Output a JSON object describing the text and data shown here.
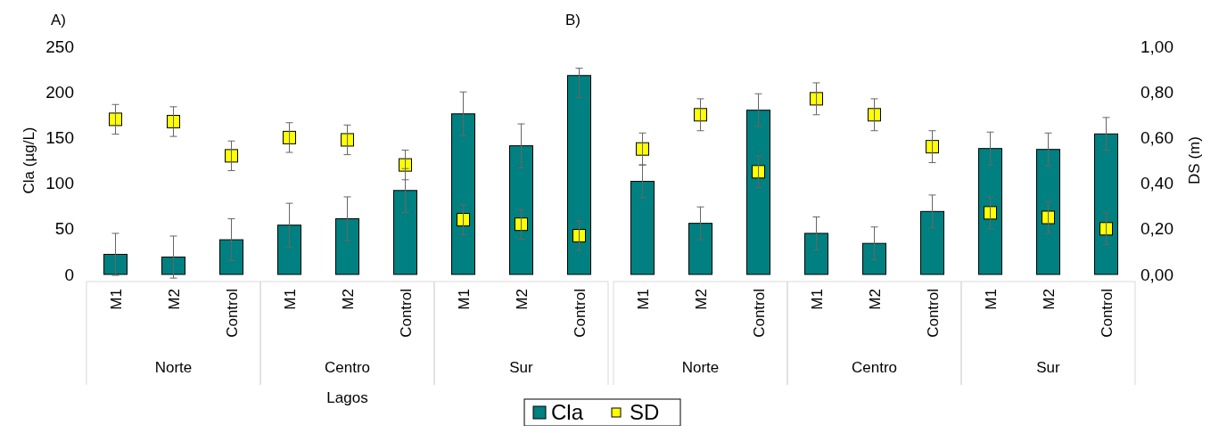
{
  "chart_data": {
    "type": "bar",
    "categories": [
      "M1",
      "M2",
      "Control",
      "M1",
      "M2",
      "Control",
      "M1",
      "M2",
      "Control",
      "M1",
      "M2",
      "Control",
      "M1",
      "M2",
      "Control",
      "M1",
      "M2",
      "Control"
    ],
    "series": [
      {
        "name": "Cla",
        "color": "#008080",
        "values": [
          22,
          19,
          38,
          54,
          61,
          92,
          176,
          141,
          218,
          102,
          56,
          180,
          45,
          34,
          69,
          138,
          137,
          154
        ],
        "errors": [
          23,
          23,
          23,
          24,
          24,
          24,
          24,
          24,
          [
            194,
            226
          ],
          18,
          18,
          18,
          18,
          18,
          18,
          18,
          18,
          18
        ]
      },
      {
        "name": "SD",
        "type": "scatter",
        "axis": "y2",
        "marker": "square",
        "color": "#ffff00",
        "values": [
          0.68,
          0.67,
          0.52,
          0.6,
          0.59,
          0.48,
          0.24,
          0.22,
          0.17,
          0.55,
          0.7,
          0.45,
          0.77,
          0.7,
          0.56,
          0.27,
          0.25,
          0.2
        ],
        "errors": [
          0.065,
          0.065,
          0.065,
          0.065,
          0.065,
          0.065,
          0.065,
          0.065,
          0.065,
          0.07,
          0.07,
          0.07,
          0.07,
          0.07,
          0.07,
          0.07,
          0.07,
          0.07
        ]
      }
    ],
    "ylabel": "Cla (µg/L)",
    "y2label": "DS (m)",
    "xlabel": "Lagos",
    "ylim": [
      0,
      250
    ],
    "yticks": [
      0,
      50,
      100,
      150,
      200,
      250
    ],
    "y2lim": [
      0,
      1
    ],
    "y2ticks": [
      {
        "value": 0,
        "label": "0,00"
      },
      {
        "value": 0.2,
        "label": "0,20"
      },
      {
        "value": 0.4,
        "label": "0,40"
      },
      {
        "value": 0.6,
        "label": "0,60"
      },
      {
        "value": 0.8,
        "label": "0,80"
      },
      {
        "value": 1,
        "label": "1,00"
      }
    ],
    "annotations": [
      "A)",
      "B)",
      "Norte",
      "Centro",
      "Sur",
      "Norte",
      "Centro",
      "Sur"
    ],
    "legend": "bottom"
  }
}
